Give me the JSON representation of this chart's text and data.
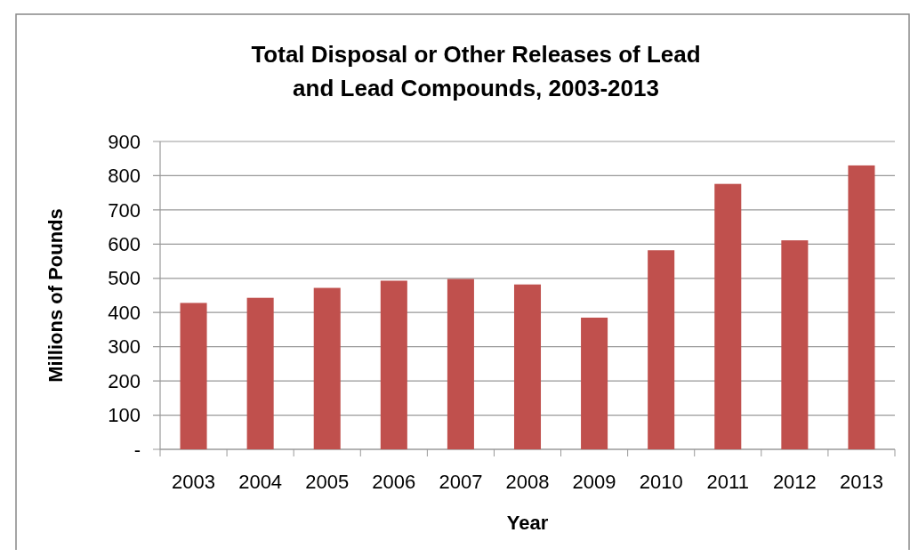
{
  "chart_data": {
    "type": "bar",
    "title": "Total Disposal or Other Releases of Lead and Lead Compounds, 2003-2013",
    "xlabel": "Year",
    "ylabel": "Millions of Pounds",
    "categories": [
      "2003",
      "2004",
      "2005",
      "2006",
      "2007",
      "2008",
      "2009",
      "2010",
      "2011",
      "2012",
      "2013"
    ],
    "values": [
      428,
      443,
      472,
      493,
      498,
      482,
      385,
      582,
      776,
      611,
      830
    ],
    "color": "#c0504d",
    "ylim": [
      0,
      900
    ],
    "yticks": [
      {
        "value": 0,
        "label": "-"
      },
      100,
      200,
      300,
      400,
      500,
      600,
      700,
      800,
      900
    ],
    "grid": "y"
  }
}
